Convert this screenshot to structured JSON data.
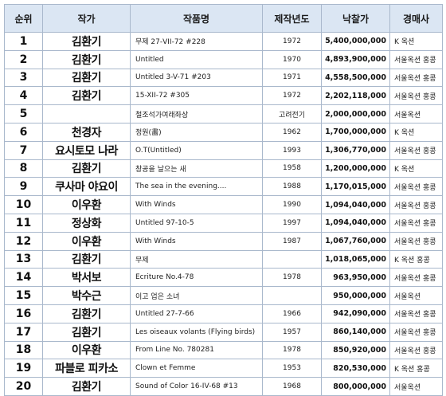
{
  "header": {
    "rank": "순위",
    "artist": "작가",
    "work": "작품명",
    "year": "제작년도",
    "price": "낙찰가",
    "house": "경매사"
  },
  "rows": [
    {
      "rank": "1",
      "artist": "김환기",
      "work": "무제 27-VII-72 #228",
      "year": "1972",
      "price": "5,400,000,000",
      "house": "K 옥션"
    },
    {
      "rank": "2",
      "artist": "김환기",
      "work": "Untitled",
      "year": "1970",
      "price": "4,893,900,000",
      "house": "서울옥션 홍콩"
    },
    {
      "rank": "3",
      "artist": "김환기",
      "work": "Untitled 3-V-71 #203",
      "year": "1971",
      "price": "4,558,500,000",
      "house": "서울옥션 홍콩"
    },
    {
      "rank": "4",
      "artist": "김환기",
      "work": "15-XII-72 #305",
      "year": "1972",
      "price": "2,202,118,000",
      "house": "서울옥션 홍콩"
    },
    {
      "rank": "5",
      "artist": "",
      "work": "철조석가여래좌상",
      "year": "고려전기",
      "price": "2,000,000,000",
      "house": "서울옥션"
    },
    {
      "rank": "6",
      "artist": "천경자",
      "work": "정원(畵)",
      "year": "1962",
      "price": "1,700,000,000",
      "house": "K 옥션"
    },
    {
      "rank": "7",
      "artist": "요시토모 나라",
      "work": "O.T(Untitled)",
      "year": "1993",
      "price": "1,306,770,000",
      "house": "서울옥션 홍콩"
    },
    {
      "rank": "8",
      "artist": "김환기",
      "work": "창공을 날으는 새",
      "year": "1958",
      "price": "1,200,000,000",
      "house": "K 옥션"
    },
    {
      "rank": "9",
      "artist": "쿠사마 야요이",
      "work": "The sea in the evening....",
      "year": "1988",
      "price": "1,170,015,000",
      "house": "서울옥션 홍콩"
    },
    {
      "rank": "10",
      "artist": "이우환",
      "work": "With Winds",
      "year": "1990",
      "price": "1,094,040,000",
      "house": "서울옥션 홍콩"
    },
    {
      "rank": "11",
      "artist": "정상화",
      "work": "Untitled 97-10-5",
      "year": "1997",
      "price": "1,094,040,000",
      "house": "서울옥션 홍콩"
    },
    {
      "rank": "12",
      "artist": "이우환",
      "work": "With Winds",
      "year": "1987",
      "price": "1,067,760,000",
      "house": "서울옥션 홍콩"
    },
    {
      "rank": "13",
      "artist": "김환기",
      "work": "무제",
      "year": "",
      "price": "1,018,065,000",
      "house": "K 옥션 홍콩"
    },
    {
      "rank": "14",
      "artist": "박서보",
      "work": "Ecriture No.4-78",
      "year": "1978",
      "price": "963,950,000",
      "house": "서울옥션 홍콩"
    },
    {
      "rank": "15",
      "artist": "박수근",
      "work": "이고 업은 소녀",
      "year": "",
      "price": "950,000,000",
      "house": "서울옥션"
    },
    {
      "rank": "16",
      "artist": "김환기",
      "work": "Untitled 27-7-66",
      "year": "1966",
      "price": "942,090,000",
      "house": "서울옥션 홍콩"
    },
    {
      "rank": "17",
      "artist": "김환기",
      "work": "Les oiseaux volants (Flying birds)",
      "year": "1957",
      "price": "860,140,000",
      "house": "서울옥션 홍콩"
    },
    {
      "rank": "18",
      "artist": "이우환",
      "work": "From Line No. 780281",
      "year": "1978",
      "price": "850,920,000",
      "house": "서울옥션 홍콩"
    },
    {
      "rank": "19",
      "artist": "파블로 피카소",
      "work": "Clown et Femme",
      "year": "1953",
      "price": "820,530,000",
      "house": "K 옥션 홍콩"
    },
    {
      "rank": "20",
      "artist": "김환기",
      "work": "Sound of Color 16-IV-68 #13",
      "year": "1968",
      "price": "800,000,000",
      "house": "서울옥션"
    }
  ]
}
